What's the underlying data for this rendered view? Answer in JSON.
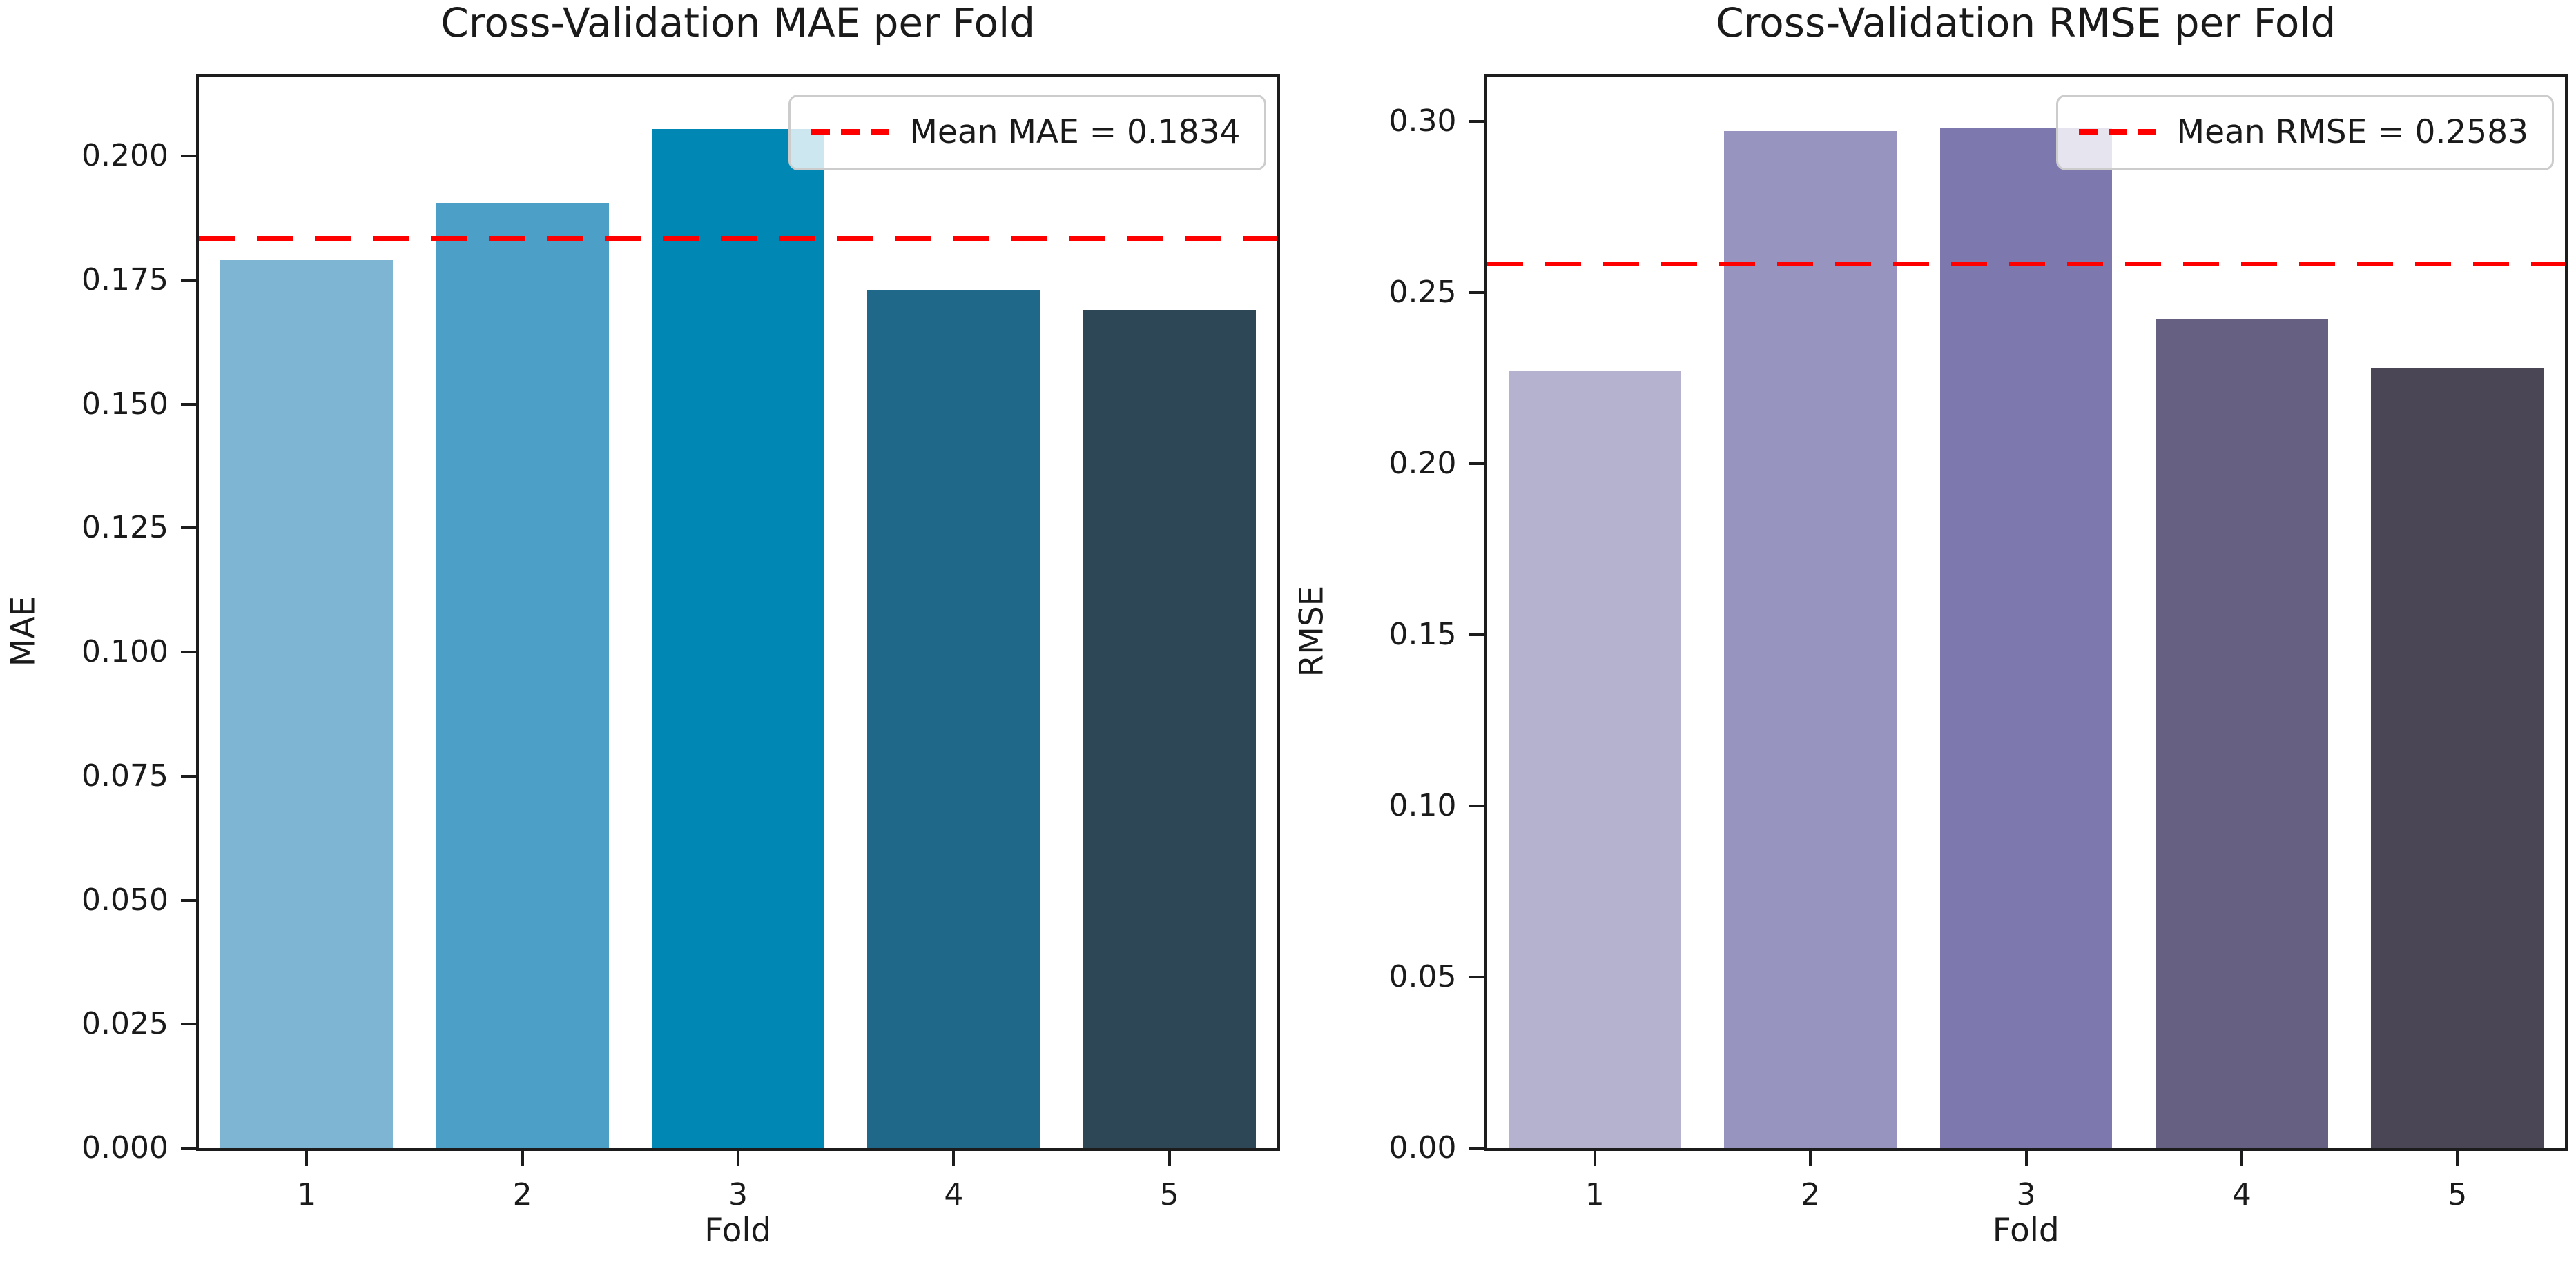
{
  "figure": {
    "background": "#ffffff",
    "mean_line_color": "#ff0000",
    "spine_color": "#1c1c1c"
  },
  "chart_data": [
    {
      "type": "bar",
      "title": "Cross-Validation MAE per Fold",
      "xlabel": "Fold",
      "ylabel": "MAE",
      "categories": [
        "1",
        "2",
        "3",
        "4",
        "5"
      ],
      "values": [
        0.179,
        0.1905,
        0.2055,
        0.173,
        0.169
      ],
      "bar_colors": [
        "#7db5d2",
        "#4c9fc7",
        "#0187b3",
        "#1f6889",
        "#2e4756"
      ],
      "mean_value": 0.1834,
      "legend_label": "Mean MAE = 0.1834",
      "legend_position": "upper right",
      "ylim": [
        0,
        0.216
      ],
      "yticks": [
        0.0,
        0.025,
        0.05,
        0.075,
        0.1,
        0.125,
        0.15,
        0.175,
        0.2
      ],
      "ytick_labels": [
        "0.000",
        "0.025",
        "0.050",
        "0.075",
        "0.100",
        "0.125",
        "0.150",
        "0.175",
        "0.200"
      ],
      "grid": false
    },
    {
      "type": "bar",
      "title": "Cross-Validation RMSE per Fold",
      "xlabel": "Fold",
      "ylabel": "RMSE",
      "categories": [
        "1",
        "2",
        "3",
        "4",
        "5"
      ],
      "values": [
        0.227,
        0.297,
        0.298,
        0.242,
        0.228
      ],
      "bar_colors": [
        "#b5b2cf",
        "#9894c0",
        "#7d78ae",
        "#666082",
        "#4a4656"
      ],
      "mean_value": 0.2583,
      "legend_label": "Mean RMSE = 0.2583",
      "legend_position": "upper right",
      "ylim": [
        0,
        0.313
      ],
      "yticks": [
        0.0,
        0.05,
        0.1,
        0.15,
        0.2,
        0.25,
        0.3
      ],
      "ytick_labels": [
        "0.00",
        "0.05",
        "0.10",
        "0.15",
        "0.20",
        "0.25",
        "0.30"
      ],
      "grid": false
    }
  ]
}
